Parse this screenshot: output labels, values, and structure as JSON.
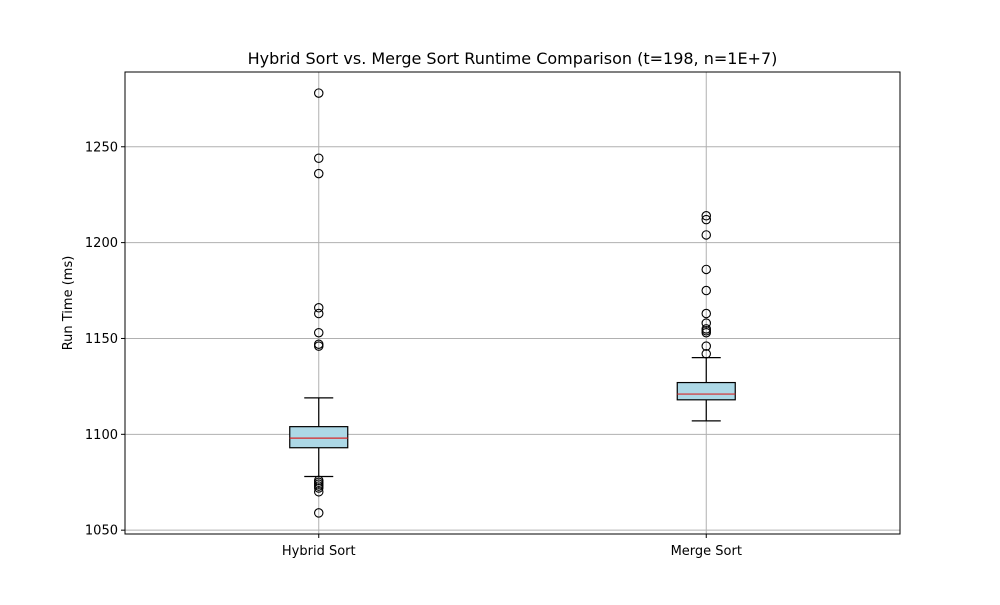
{
  "chart_data": {
    "type": "box",
    "title": "Hybrid Sort vs. Merge Sort Runtime Comparison (t=198, n=1E+7)",
    "xlabel": "",
    "ylabel": "Run Time (ms)",
    "ylim": [
      1048,
      1289
    ],
    "yticks": [
      1050,
      1100,
      1150,
      1200,
      1250
    ],
    "grid": true,
    "box_fill": "#add8e6",
    "median_color": "#d62728",
    "series": [
      {
        "category": "Hybrid Sort",
        "whisker_low": 1078,
        "q1": 1093,
        "median": 1098,
        "q3": 1104,
        "whisker_high": 1119,
        "outliers": [
          1278,
          1244,
          1236,
          1166,
          1163,
          1153,
          1147,
          1146,
          1076,
          1075,
          1074,
          1073,
          1072,
          1070,
          1059
        ]
      },
      {
        "category": "Merge Sort",
        "whisker_low": 1107,
        "q1": 1118,
        "median": 1121,
        "q3": 1127,
        "whisker_high": 1140,
        "outliers": [
          1214,
          1212,
          1204,
          1186,
          1175,
          1163,
          1158,
          1155,
          1154,
          1153,
          1146,
          1142
        ]
      }
    ]
  }
}
